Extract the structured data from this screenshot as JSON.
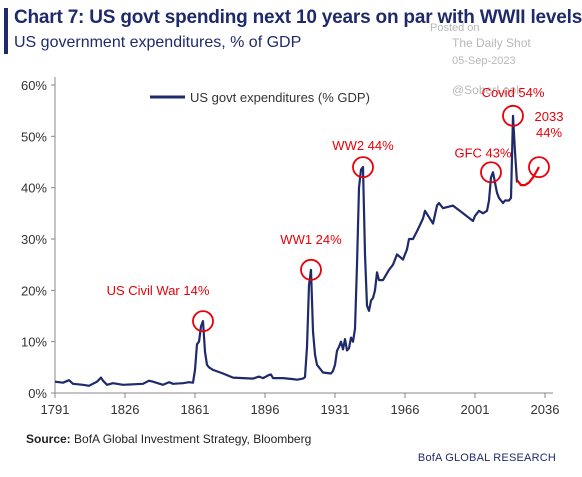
{
  "header": {
    "title": "Chart 7: US govt spending next 10 years on par with WWII levels",
    "subtitle": "US government expenditures, % of GDP"
  },
  "watermark": {
    "line1": "Posted on",
    "line2": "The Daily Shot",
    "line3": "05-Sep-2023",
    "line4": "@SoberLook"
  },
  "footer": {
    "source_label": "Source:",
    "source_text": " BofA Global Investment Strategy, Bloomberg",
    "brand": "BofA GLOBAL RESEARCH"
  },
  "colors": {
    "line": "#1f2a6b",
    "projection": "#e8000a",
    "annotation": "#e8000a",
    "axis": "#888888"
  },
  "chart_data": {
    "type": "line",
    "title": "Chart 7: US govt spending next 10 years on par with WWII levels",
    "subtitle": "US government expenditures, % of GDP",
    "xlabel": "",
    "ylabel": "",
    "xlim": [
      1791,
      2040
    ],
    "ylim": [
      0,
      60
    ],
    "xticks": [
      1791,
      1826,
      1861,
      1896,
      1931,
      1966,
      2001,
      2036
    ],
    "yticks": [
      0,
      10,
      20,
      30,
      40,
      50,
      60
    ],
    "ytick_labels": [
      "0%",
      "10%",
      "20%",
      "30%",
      "40%",
      "50%",
      "60%"
    ],
    "grid": false,
    "legend_position": "top-left",
    "series": [
      {
        "name": "US govt expenditures (% GDP)",
        "x": [
          1791,
          1795,
          1798,
          1800,
          1805,
          1808,
          1812,
          1814,
          1815,
          1817,
          1820,
          1825,
          1830,
          1835,
          1838,
          1840,
          1845,
          1848,
          1850,
          1855,
          1858,
          1860,
          1861,
          1862,
          1863,
          1864,
          1865,
          1866,
          1867,
          1868,
          1870,
          1875,
          1880,
          1885,
          1890,
          1893,
          1895,
          1898,
          1899,
          1900,
          1905,
          1910,
          1912,
          1915,
          1916,
          1917,
          1918,
          1919,
          1920,
          1921,
          1922,
          1925,
          1929,
          1930,
          1931,
          1932,
          1933,
          1934,
          1935,
          1936,
          1937,
          1938,
          1939,
          1940,
          1941,
          1942,
          1943,
          1944,
          1945,
          1946,
          1947,
          1948,
          1949,
          1950,
          1951,
          1952,
          1953,
          1955,
          1958,
          1960,
          1962,
          1965,
          1967,
          1968,
          1970,
          1972,
          1975,
          1976,
          1980,
          1982,
          1983,
          1985,
          1990,
          1995,
          2000,
          2001,
          2003,
          2005,
          2007,
          2008,
          2009,
          2010,
          2011,
          2012,
          2013,
          2014,
          2015,
          2016,
          2017,
          2018,
          2019,
          2020,
          2021,
          2022
        ],
        "values": [
          2.2,
          2.0,
          2.5,
          1.8,
          1.6,
          1.4,
          2.2,
          3.0,
          2.4,
          1.6,
          1.9,
          1.6,
          1.7,
          1.8,
          2.4,
          2.2,
          1.6,
          2.1,
          1.8,
          1.9,
          2.1,
          2.0,
          4.5,
          9.5,
          10.0,
          13.0,
          14.0,
          8.0,
          5.5,
          5.0,
          4.5,
          3.8,
          3.0,
          2.9,
          2.8,
          3.2,
          2.9,
          3.5,
          3.6,
          2.9,
          2.9,
          2.7,
          2.6,
          2.8,
          3.1,
          9.0,
          21.0,
          24.0,
          12.0,
          7.5,
          5.5,
          4.0,
          3.8,
          4.3,
          5.5,
          8.2,
          9.0,
          10.0,
          8.5,
          10.5,
          8.3,
          8.7,
          10.8,
          10.0,
          12.5,
          25.0,
          40.0,
          43.5,
          44.0,
          27.0,
          17.0,
          16.0,
          18.0,
          18.5,
          20.0,
          23.5,
          22.0,
          22.0,
          24.0,
          25.0,
          27.0,
          26.0,
          28.0,
          30.0,
          30.0,
          31.5,
          34.0,
          35.5,
          33.0,
          36.5,
          37.0,
          36.0,
          36.5,
          35.0,
          33.5,
          34.5,
          35.5,
          35.0,
          35.5,
          37.5,
          42.0,
          43.0,
          41.0,
          39.0,
          38.0,
          37.5,
          37.0,
          37.5,
          37.5,
          37.5,
          38.0,
          54.0,
          47.0,
          41.0
        ]
      },
      {
        "name": "",
        "x": [
          2022,
          2024,
          2026,
          2028,
          2030,
          2033
        ],
        "values": [
          41.5,
          40.5,
          40.5,
          41.0,
          42.0,
          44.0
        ]
      }
    ],
    "annotations": [
      {
        "label": "US Civil War 14%",
        "x": 1865,
        "y": 14
      },
      {
        "label": "WW1 24%",
        "x": 1919,
        "y": 24
      },
      {
        "label": "WW2 44%",
        "x": 1945,
        "y": 44
      },
      {
        "label": "GFC 43%",
        "x": 2009,
        "y": 43
      },
      {
        "label": "Covid 54%",
        "x": 2020,
        "y": 54
      },
      {
        "label_line1": "2033",
        "label_line2": "44%",
        "x": 2033,
        "y": 44
      }
    ]
  }
}
